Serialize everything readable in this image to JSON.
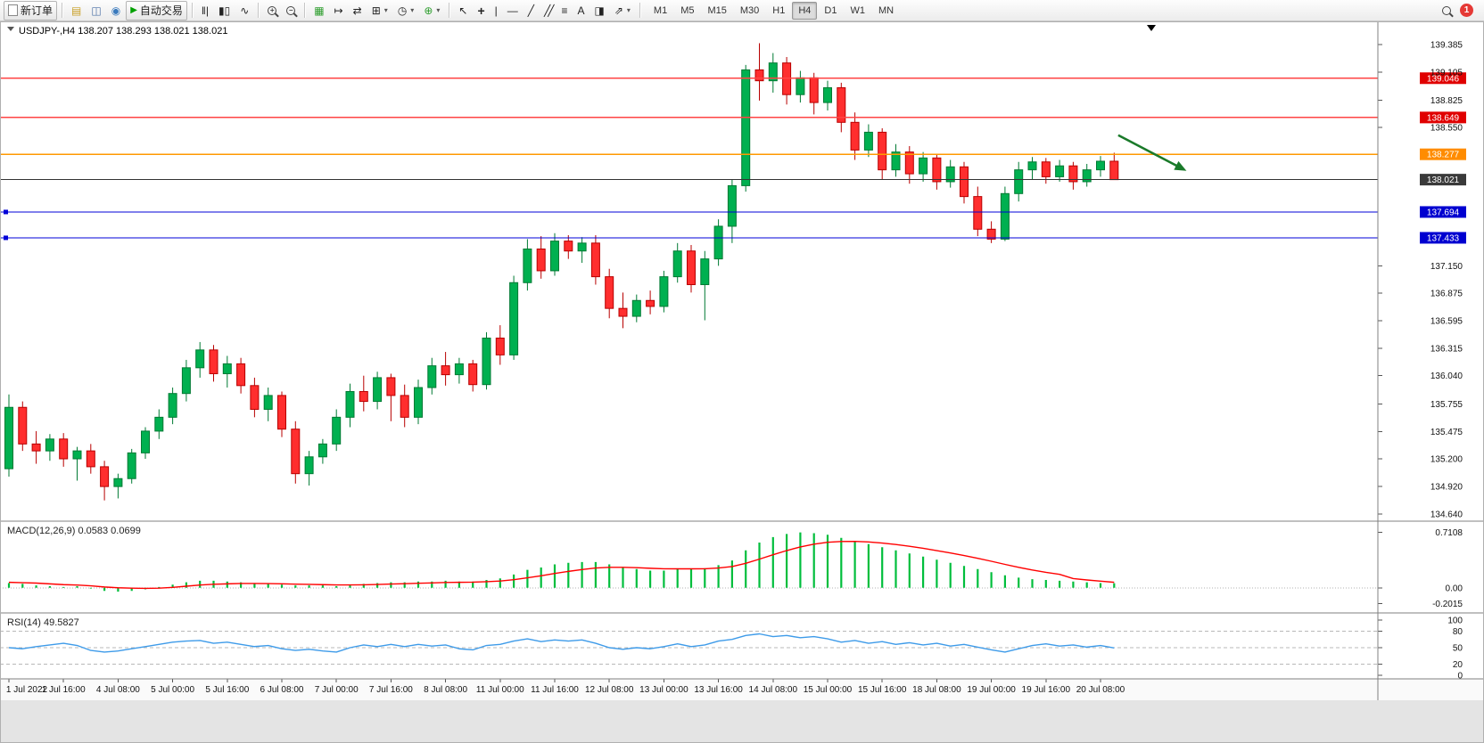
{
  "toolbar": {
    "timeframes": [
      "M1",
      "M5",
      "M15",
      "M30",
      "H1",
      "H4",
      "D1",
      "W1",
      "MN"
    ],
    "active_timeframe": "H4",
    "items": [
      {
        "name": "new-order-button",
        "type": "button",
        "label": "新订单",
        "icon": "page",
        "framed": true
      },
      {
        "type": "sep"
      },
      {
        "name": "symbols-button",
        "icon": "▤",
        "color": "#c8a028"
      },
      {
        "name": "depth-of-market-button",
        "icon": "◫",
        "color": "#4a6fa5"
      },
      {
        "name": "mql5-community-button",
        "icon": "◉",
        "color": "#3a7abd"
      },
      {
        "name": "algo-trading-button",
        "type": "button",
        "label": "自动交易",
        "icon": "play",
        "framed": true
      },
      {
        "type": "sep"
      },
      {
        "name": "bar-chart-button",
        "icon": "‖|"
      },
      {
        "name": "candlestick-chart-button",
        "icon": "▮▯"
      },
      {
        "name": "line-chart-button",
        "icon": "∿"
      },
      {
        "type": "sep"
      },
      {
        "name": "zoom-in-button",
        "icon": "mag+"
      },
      {
        "name": "zoom-out-button",
        "icon": "mag-"
      },
      {
        "type": "sep"
      },
      {
        "name": "tile-windows-button",
        "icon": "▦",
        "color": "#2e9e2e"
      },
      {
        "name": "auto-scroll-button",
        "icon": "↦"
      },
      {
        "name": "chart-shift-button",
        "icon": "⇄"
      },
      {
        "name": "new-chart-button",
        "icon": "⊞",
        "caret": true
      },
      {
        "name": "periods-button",
        "icon": "◷",
        "caret": true
      },
      {
        "name": "indicators-button",
        "icon": "⊕",
        "color": "#2e9e2e",
        "caret": true
      },
      {
        "type": "sep"
      },
      {
        "name": "cursor-button",
        "icon": "↖"
      },
      {
        "name": "crosshair-button",
        "icon": "+"
      },
      {
        "name": "vertical-line-button",
        "icon": "|"
      },
      {
        "name": "horizontal-line-button",
        "icon": "―"
      },
      {
        "name": "trendline-button",
        "icon": "╱"
      },
      {
        "name": "channel-button",
        "icon": "╱╱"
      },
      {
        "name": "fibonacci-button",
        "icon": "≡"
      },
      {
        "name": "text-button",
        "icon": "A"
      },
      {
        "name": "label-button",
        "icon": "◨"
      },
      {
        "name": "shapes-button",
        "icon": "⇗",
        "caret": true
      },
      {
        "type": "sep"
      },
      {
        "type": "timeframes"
      },
      {
        "type": "spacer"
      },
      {
        "name": "search-button",
        "icon": "mag"
      },
      {
        "name": "notifications-badge",
        "type": "badge",
        "label": "1"
      }
    ]
  },
  "chart": {
    "title": "USDJPY-,H4 138.207 138.293 138.021 138.021",
    "symbol": "USDJPY-",
    "period": "H4",
    "open": "138.207",
    "high": "138.293",
    "low": "138.021",
    "close": "138.021"
  },
  "chart_data": {
    "type": "candlestick",
    "symbol": "USDJPY",
    "timeframe": "H4",
    "colors": {
      "bull_fill": "#00B050",
      "bull_stroke": "#007A33",
      "bear_fill": "#FF2E2E",
      "bear_stroke": "#B80000",
      "red_line": "#FF4444",
      "orange_line": "#FF9900",
      "blue_line": "#0000D8",
      "current_price_line": "#333333",
      "macd_histogram": "#00BE3C",
      "macd_signal": "#FF0000",
      "rsi_line": "#3E9BE9",
      "arrow": "#1A7A2A"
    },
    "candles": [
      [
        135.1,
        135.85,
        135.02,
        135.72
      ],
      [
        135.72,
        135.78,
        135.28,
        135.35
      ],
      [
        135.35,
        135.48,
        135.15,
        135.28
      ],
      [
        135.28,
        135.45,
        135.18,
        135.4
      ],
      [
        135.4,
        135.46,
        135.12,
        135.2
      ],
      [
        135.2,
        135.32,
        134.98,
        135.28
      ],
      [
        135.28,
        135.35,
        135.05,
        135.12
      ],
      [
        135.12,
        135.18,
        134.78,
        134.92
      ],
      [
        134.92,
        135.05,
        134.8,
        135.0
      ],
      [
        135.0,
        135.3,
        134.95,
        135.26
      ],
      [
        135.26,
        135.52,
        135.2,
        135.48
      ],
      [
        135.48,
        135.7,
        135.4,
        135.62
      ],
      [
        135.62,
        135.92,
        135.55,
        135.86
      ],
      [
        135.86,
        136.2,
        135.78,
        136.12
      ],
      [
        136.12,
        136.38,
        136.02,
        136.3
      ],
      [
        136.3,
        136.35,
        135.98,
        136.06
      ],
      [
        136.06,
        136.24,
        135.92,
        136.16
      ],
      [
        136.16,
        136.22,
        135.86,
        135.94
      ],
      [
        135.94,
        136.02,
        135.62,
        135.7
      ],
      [
        135.7,
        135.92,
        135.58,
        135.84
      ],
      [
        135.84,
        135.88,
        135.42,
        135.5
      ],
      [
        135.5,
        135.58,
        134.95,
        135.05
      ],
      [
        135.05,
        135.28,
        134.93,
        135.22
      ],
      [
        135.22,
        135.4,
        135.15,
        135.35
      ],
      [
        135.35,
        135.7,
        135.28,
        135.62
      ],
      [
        135.62,
        135.96,
        135.52,
        135.88
      ],
      [
        135.88,
        136.04,
        135.68,
        135.78
      ],
      [
        135.78,
        136.08,
        135.7,
        136.02
      ],
      [
        136.02,
        136.06,
        135.58,
        135.84
      ],
      [
        135.84,
        135.95,
        135.52,
        135.62
      ],
      [
        135.62,
        136.0,
        135.55,
        135.92
      ],
      [
        135.92,
        136.22,
        135.85,
        136.14
      ],
      [
        136.14,
        136.28,
        135.94,
        136.05
      ],
      [
        136.05,
        136.22,
        135.96,
        136.16
      ],
      [
        136.16,
        136.2,
        135.88,
        135.95
      ],
      [
        135.95,
        136.48,
        135.9,
        136.42
      ],
      [
        136.42,
        136.55,
        136.15,
        136.25
      ],
      [
        136.25,
        137.05,
        136.2,
        136.98
      ],
      [
        136.98,
        137.42,
        136.9,
        137.32
      ],
      [
        137.32,
        137.45,
        137.02,
        137.1
      ],
      [
        137.1,
        137.48,
        137.05,
        137.4
      ],
      [
        137.4,
        137.46,
        137.22,
        137.3
      ],
      [
        137.3,
        137.44,
        137.18,
        137.38
      ],
      [
        137.38,
        137.46,
        136.96,
        137.04
      ],
      [
        137.04,
        137.12,
        136.62,
        136.72
      ],
      [
        136.72,
        136.88,
        136.52,
        136.64
      ],
      [
        136.64,
        136.86,
        136.58,
        136.8
      ],
      [
        136.8,
        136.9,
        136.66,
        136.74
      ],
      [
        136.74,
        137.1,
        136.68,
        137.04
      ],
      [
        137.04,
        137.38,
        136.98,
        137.3
      ],
      [
        137.3,
        137.36,
        136.88,
        136.96
      ],
      [
        136.96,
        137.3,
        136.6,
        137.22
      ],
      [
        137.22,
        137.62,
        137.15,
        137.55
      ],
      [
        137.55,
        138.02,
        137.38,
        137.96
      ],
      [
        137.96,
        139.18,
        137.9,
        139.13
      ],
      [
        139.13,
        139.4,
        138.82,
        139.02
      ],
      [
        139.02,
        139.3,
        138.9,
        139.2
      ],
      [
        139.2,
        139.26,
        138.78,
        138.88
      ],
      [
        138.88,
        139.12,
        138.8,
        139.05
      ],
      [
        139.05,
        139.1,
        138.68,
        138.8
      ],
      [
        138.8,
        139.02,
        138.72,
        138.95
      ],
      [
        138.95,
        139.0,
        138.5,
        138.6
      ],
      [
        138.6,
        138.7,
        138.22,
        138.32
      ],
      [
        138.32,
        138.58,
        138.25,
        138.5
      ],
      [
        138.5,
        138.54,
        138.02,
        138.12
      ],
      [
        138.12,
        138.38,
        138.05,
        138.3
      ],
      [
        138.3,
        138.36,
        137.98,
        138.08
      ],
      [
        138.08,
        138.3,
        138.0,
        138.24
      ],
      [
        138.24,
        138.28,
        137.92,
        138.0
      ],
      [
        138.0,
        138.22,
        137.94,
        138.15
      ],
      [
        138.15,
        138.2,
        137.78,
        137.85
      ],
      [
        137.85,
        137.95,
        137.45,
        137.52
      ],
      [
        137.52,
        137.6,
        137.38,
        137.42
      ],
      [
        137.42,
        137.95,
        137.4,
        137.88
      ],
      [
        137.88,
        138.2,
        137.8,
        138.12
      ],
      [
        138.12,
        138.25,
        138.02,
        138.2
      ],
      [
        138.2,
        138.24,
        137.98,
        138.05
      ],
      [
        138.05,
        138.22,
        138.0,
        138.16
      ],
      [
        138.16,
        138.2,
        137.92,
        138.0
      ],
      [
        138.0,
        138.18,
        137.95,
        138.12
      ],
      [
        138.12,
        138.26,
        138.05,
        138.207
      ],
      [
        138.207,
        138.293,
        138.021,
        138.021
      ]
    ],
    "hlines": [
      {
        "price": 139.046,
        "label": "139.046",
        "line_color": "#FF4444",
        "badge_bg": "#E00000",
        "style": "solid"
      },
      {
        "price": 138.649,
        "label": "138.649",
        "line_color": "#FF4444",
        "badge_bg": "#E00000",
        "style": "solid"
      },
      {
        "price": 138.277,
        "label": "138.277",
        "line_color": "#FF9900",
        "badge_bg": "#FF8C00",
        "style": "solid"
      },
      {
        "price": 138.021,
        "label": "138.021",
        "line_color": "#333333",
        "badge_bg": "#3A3A3A",
        "style": "solid",
        "current": true
      },
      {
        "price": 137.694,
        "label": "137.694",
        "line_color": "#0000D8",
        "badge_bg": "#0000D0",
        "style": "solid",
        "handles": true
      },
      {
        "price": 137.433,
        "label": "137.433",
        "line_color": "#0000D8",
        "badge_bg": "#0000D0",
        "style": "solid",
        "handles": true
      }
    ],
    "annotation": {
      "from_index": 81.3,
      "from_price": 138.47,
      "to_index": 86.3,
      "to_price": 138.11
    },
    "price_axis": {
      "labels": [
        {
          "v": 139.385,
          "t": "139.385"
        },
        {
          "v": 139.105,
          "t": "139.105"
        },
        {
          "v": 138.825,
          "t": "138.825"
        },
        {
          "v": 138.55,
          "t": "138.550"
        },
        {
          "v": 137.15,
          "t": "137.150"
        },
        {
          "v": 136.875,
          "t": "136.875"
        },
        {
          "v": 136.595,
          "t": "136.595"
        },
        {
          "v": 136.315,
          "t": "136.315"
        },
        {
          "v": 136.04,
          "t": "136.040"
        },
        {
          "v": 135.755,
          "t": "135.755"
        },
        {
          "v": 135.475,
          "t": "135.475"
        },
        {
          "v": 135.2,
          "t": "135.200"
        },
        {
          "v": 134.92,
          "t": "134.920"
        },
        {
          "v": 134.64,
          "t": "134.640"
        }
      ]
    },
    "time_axis": {
      "stride": 4,
      "labels": [
        "1 Jul 2022",
        "1 Jul 16:00",
        "4 Jul 08:00",
        "5 Jul 00:00",
        "5 Jul 16:00",
        "6 Jul 08:00",
        "7 Jul 00:00",
        "7 Jul 16:00",
        "8 Jul 08:00",
        "11 Jul 00:00",
        "11 Jul 16:00",
        "12 Jul 08:00",
        "13 Jul 00:00",
        "13 Jul 16:00",
        "14 Jul 08:00",
        "15 Jul 00:00",
        "15 Jul 16:00",
        "18 Jul 08:00",
        "19 Jul 00:00",
        "19 Jul 16:00",
        "20 Jul 08:00"
      ]
    },
    "macd": {
      "name": "MACD(12,26,9)",
      "values_text": "0.0583 0.0699",
      "axis": [
        {
          "v": 0.7108,
          "t": "0.7108"
        },
        {
          "v": 0,
          "t": "0.00"
        },
        {
          "v": -0.2015,
          "t": "-0.2015"
        }
      ],
      "histogram": [
        0.06,
        0.05,
        0.03,
        0.02,
        0.01,
        0.02,
        -0.01,
        -0.04,
        -0.05,
        -0.04,
        -0.02,
        0.01,
        0.04,
        0.07,
        0.09,
        0.09,
        0.08,
        0.07,
        0.05,
        0.05,
        0.04,
        0.03,
        0.03,
        0.03,
        0.02,
        0.03,
        0.05,
        0.06,
        0.07,
        0.07,
        0.08,
        0.08,
        0.09,
        0.08,
        0.08,
        0.1,
        0.12,
        0.17,
        0.23,
        0.26,
        0.3,
        0.32,
        0.33,
        0.33,
        0.3,
        0.26,
        0.24,
        0.22,
        0.22,
        0.24,
        0.24,
        0.25,
        0.29,
        0.35,
        0.48,
        0.58,
        0.65,
        0.69,
        0.71,
        0.7,
        0.68,
        0.64,
        0.6,
        0.56,
        0.52,
        0.48,
        0.44,
        0.4,
        0.36,
        0.32,
        0.28,
        0.24,
        0.2,
        0.16,
        0.13,
        0.11,
        0.1,
        0.09,
        0.08,
        0.07,
        0.06,
        0.058
      ],
      "signal": [
        0.07,
        0.065,
        0.06,
        0.05,
        0.04,
        0.035,
        0.025,
        0.01,
        0.0,
        -0.005,
        -0.008,
        -0.005,
        0.005,
        0.02,
        0.035,
        0.045,
        0.05,
        0.055,
        0.055,
        0.054,
        0.051,
        0.047,
        0.043,
        0.04,
        0.037,
        0.036,
        0.038,
        0.042,
        0.048,
        0.052,
        0.058,
        0.062,
        0.068,
        0.07,
        0.072,
        0.078,
        0.086,
        0.103,
        0.128,
        0.154,
        0.183,
        0.21,
        0.234,
        0.253,
        0.262,
        0.262,
        0.258,
        0.25,
        0.244,
        0.243,
        0.243,
        0.244,
        0.253,
        0.272,
        0.314,
        0.367,
        0.424,
        0.477,
        0.524,
        0.559,
        0.583,
        0.594,
        0.595,
        0.588,
        0.574,
        0.555,
        0.532,
        0.506,
        0.477,
        0.446,
        0.413,
        0.378,
        0.34,
        0.3,
        0.262,
        0.228,
        0.198,
        0.172,
        0.118,
        0.1,
        0.085,
        0.07
      ]
    },
    "rsi": {
      "name": "RSI(14)",
      "value_text": "49.5827",
      "axis": [
        {
          "v": 100,
          "t": "100"
        },
        {
          "v": 80,
          "t": "80"
        },
        {
          "v": 50,
          "t": "50"
        },
        {
          "v": 20,
          "t": "20"
        },
        {
          "v": 0,
          "t": "0"
        }
      ],
      "levels": [
        80,
        50,
        20
      ],
      "values": [
        50,
        48,
        52,
        55,
        58,
        54,
        45,
        42,
        44,
        48,
        52,
        56,
        60,
        62,
        63,
        58,
        60,
        56,
        52,
        54,
        48,
        45,
        47,
        44,
        42,
        50,
        55,
        52,
        56,
        52,
        56,
        53,
        55,
        48,
        46,
        54,
        56,
        62,
        66,
        61,
        64,
        62,
        64,
        58,
        50,
        47,
        50,
        48,
        52,
        57,
        52,
        55,
        62,
        65,
        72,
        75,
        70,
        72,
        68,
        70,
        66,
        60,
        63,
        58,
        61,
        56,
        59,
        55,
        58,
        53,
        56,
        51,
        46,
        42,
        48,
        54,
        57,
        53,
        55,
        51,
        54,
        49.58
      ]
    }
  }
}
